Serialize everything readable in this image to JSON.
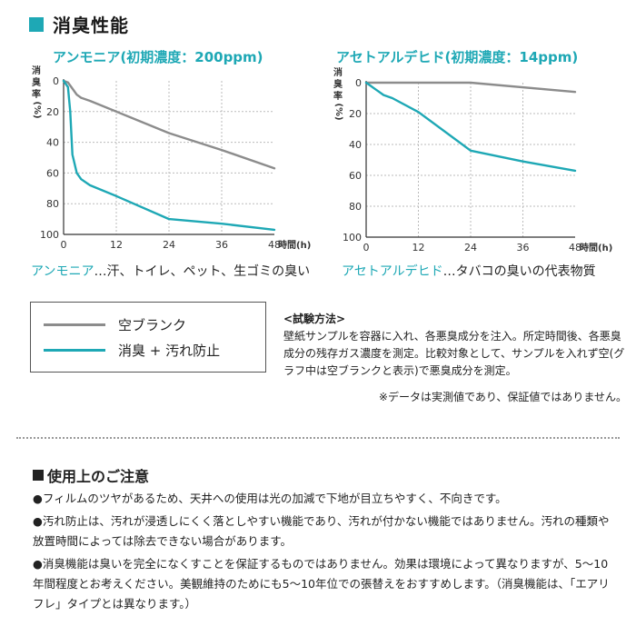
{
  "section_title": "消臭性能",
  "chart_data": [
    {
      "type": "line",
      "title": "アンモニア(初期濃度：200ppm)",
      "xlabel": "時間(h)",
      "ylabel": "消臭率(%)",
      "x_ticks": [
        "0",
        "12",
        "24",
        "36",
        "48"
      ],
      "y_ticks": [
        "0",
        "20",
        "40",
        "60",
        "80",
        "100"
      ],
      "xlim": [
        0,
        48
      ],
      "ylim": [
        0,
        100
      ],
      "y_inverted": true,
      "grid": true,
      "series": [
        {
          "name": "空ブランク",
          "color": "#8c8c8c",
          "x": [
            0,
            1,
            2,
            3,
            4,
            6,
            12,
            24,
            36,
            48
          ],
          "y": [
            0,
            1,
            5,
            9,
            11,
            13,
            20,
            34,
            45,
            57
          ]
        },
        {
          "name": "消臭 + 汚れ防止",
          "color": "#1ea8b5",
          "x": [
            0,
            1,
            1.5,
            2,
            3,
            4,
            6,
            12,
            24,
            36,
            48
          ],
          "y": [
            0,
            4,
            20,
            48,
            60,
            64,
            68,
            75,
            90,
            93,
            97
          ]
        }
      ]
    },
    {
      "type": "line",
      "title": "アセトアルデヒド(初期濃度：14ppm)",
      "xlabel": "時間(h)",
      "ylabel": "消臭率(%)",
      "x_ticks": [
        "0",
        "12",
        "24",
        "36",
        "48"
      ],
      "y_ticks": [
        "0",
        "20",
        "40",
        "60",
        "80",
        "100"
      ],
      "xlim": [
        0,
        48
      ],
      "ylim": [
        0,
        100
      ],
      "y_inverted": true,
      "grid": true,
      "series": [
        {
          "name": "空ブランク",
          "color": "#8c8c8c",
          "x": [
            0,
            24,
            48
          ],
          "y": [
            0,
            0,
            6
          ]
        },
        {
          "name": "消臭 + 汚れ防止",
          "color": "#1ea8b5",
          "x": [
            0,
            1,
            2,
            3,
            4,
            6,
            12,
            24,
            36,
            48
          ],
          "y": [
            0,
            2,
            4,
            6,
            8,
            10,
            19,
            44,
            51,
            57
          ]
        }
      ]
    }
  ],
  "captions": [
    {
      "highlight": "アンモニア",
      "text": "…汗、トイレ、ペット、生ゴミの臭い"
    },
    {
      "highlight": "アセトアルデヒド",
      "text": "…タバコの臭いの代表物質"
    }
  ],
  "legend": {
    "blank_label": "空ブランク",
    "treated_label": "消臭 + 汚れ防止",
    "blank_color": "#8c8c8c",
    "treated_color": "#1ea8b5"
  },
  "method": {
    "title": "<試験方法>",
    "body": "壁紙サンプルを容器に入れ、各悪臭成分を注入。所定時間後、各悪臭成分の残存ガス濃度を測定。比較対象として、サンプルを入れず空(グラフ中は空ブランクと表示)で悪臭成分を測定。",
    "note": "※データは実測値であり、保証値ではありません。"
  },
  "notes": {
    "heading": "使用上のご注意",
    "items": [
      "●フィルムのツヤがあるため、天井への使用は光の加減で下地が目立ちやすく、不向きです。",
      "●汚れ防止は、汚れが浸透しにくく落としやすい機能であり、汚れが付かない機能ではありません。汚れの種類や放置時間によっては除去できない場合があります。",
      "●消臭機能は臭いを完全になくすことを保証するものではありません。効果は環境によって異なりますが、5〜10年間程度とお考えください。美観維持のためにも5〜10年位での張替えをおすすめします。（消臭機能は、「エアリフレ」タイプとは異なります。）"
    ]
  }
}
